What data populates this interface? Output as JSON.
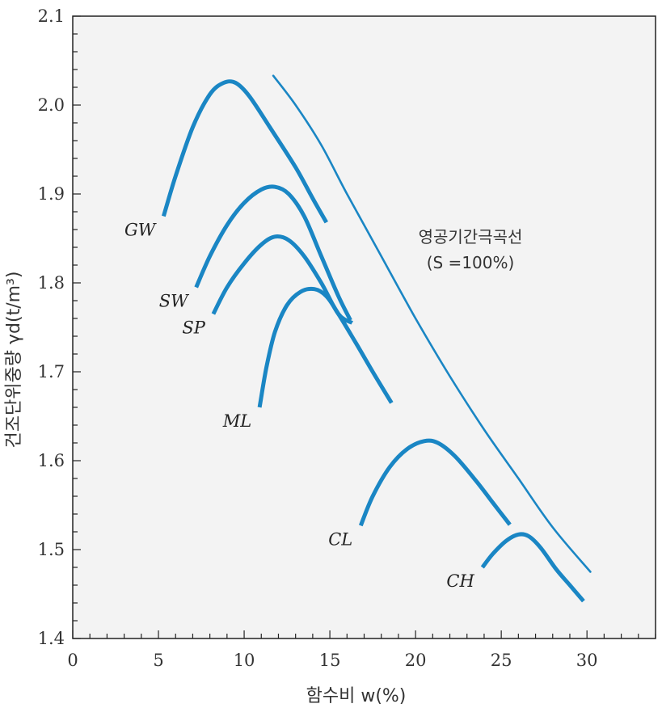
{
  "chart_data": {
    "type": "line",
    "xlabel": "함수비 w(%)",
    "ylabel": "건조단위중량 γd(t/m³)",
    "xlim": [
      0,
      34
    ],
    "ylim": [
      1.4,
      2.1
    ],
    "x_ticks": [
      "0",
      "5",
      "10",
      "15",
      "20",
      "25",
      "30"
    ],
    "y_ticks": [
      "1.4",
      "1.5",
      "1.6",
      "1.7",
      "1.8",
      "1.9",
      "2.0",
      "2.1"
    ],
    "grid": false,
    "line_color": "#1a86c4",
    "plot_bg": "#f3f3f3",
    "series": [
      {
        "name": "GW",
        "points": [
          [
            5.3,
            1.875
          ],
          [
            6,
            1.92
          ],
          [
            7,
            1.975
          ],
          [
            8,
            2.012
          ],
          [
            8.8,
            2.025
          ],
          [
            9.5,
            2.025
          ],
          [
            10.3,
            2.01
          ],
          [
            11.5,
            1.975
          ],
          [
            13,
            1.93
          ],
          [
            14,
            1.895
          ],
          [
            14.8,
            1.868
          ]
        ]
      },
      {
        "name": "SW",
        "points": [
          [
            7.2,
            1.795
          ],
          [
            8,
            1.83
          ],
          [
            9,
            1.865
          ],
          [
            10,
            1.89
          ],
          [
            11,
            1.905
          ],
          [
            11.8,
            1.908
          ],
          [
            12.6,
            1.9
          ],
          [
            13.5,
            1.875
          ],
          [
            14.5,
            1.83
          ],
          [
            15.5,
            1.785
          ],
          [
            16.2,
            1.758
          ]
        ]
      },
      {
        "name": "SP",
        "points": [
          [
            8.2,
            1.765
          ],
          [
            9,
            1.795
          ],
          [
            10,
            1.822
          ],
          [
            11,
            1.843
          ],
          [
            11.8,
            1.852
          ],
          [
            12.6,
            1.848
          ],
          [
            13.5,
            1.83
          ],
          [
            14.5,
            1.8
          ],
          [
            15.5,
            1.765
          ],
          [
            16.3,
            1.755
          ]
        ]
      },
      {
        "name": "ML",
        "points": [
          [
            10.9,
            1.66
          ],
          [
            11.3,
            1.705
          ],
          [
            11.8,
            1.745
          ],
          [
            12.5,
            1.775
          ],
          [
            13.3,
            1.79
          ],
          [
            14.1,
            1.793
          ],
          [
            14.8,
            1.785
          ],
          [
            15.5,
            1.765
          ],
          [
            16.5,
            1.733
          ],
          [
            17.5,
            1.7
          ],
          [
            18.6,
            1.665
          ]
        ]
      },
      {
        "name": "CL",
        "points": [
          [
            16.8,
            1.527
          ],
          [
            17.5,
            1.56
          ],
          [
            18.5,
            1.593
          ],
          [
            19.5,
            1.613
          ],
          [
            20.5,
            1.622
          ],
          [
            21.3,
            1.62
          ],
          [
            22.3,
            1.605
          ],
          [
            23.5,
            1.578
          ],
          [
            24.5,
            1.553
          ],
          [
            25.5,
            1.528
          ]
        ]
      },
      {
        "name": "CH",
        "points": [
          [
            23.9,
            1.48
          ],
          [
            24.5,
            1.495
          ],
          [
            25.3,
            1.51
          ],
          [
            26,
            1.517
          ],
          [
            26.6,
            1.515
          ],
          [
            27.3,
            1.502
          ],
          [
            28.2,
            1.478
          ],
          [
            29,
            1.46
          ],
          [
            29.8,
            1.442
          ]
        ]
      }
    ],
    "zero_air_voids": {
      "label": "영공기간극곡선",
      "sublabel": "(S =100%)",
      "points": [
        [
          11.7,
          2.033
        ],
        [
          13,
          2.0
        ],
        [
          14.5,
          1.955
        ],
        [
          16,
          1.9
        ],
        [
          18,
          1.83
        ],
        [
          20,
          1.76
        ],
        [
          22,
          1.695
        ],
        [
          24,
          1.635
        ],
        [
          26,
          1.58
        ],
        [
          28,
          1.525
        ],
        [
          30.2,
          1.475
        ]
      ]
    }
  }
}
